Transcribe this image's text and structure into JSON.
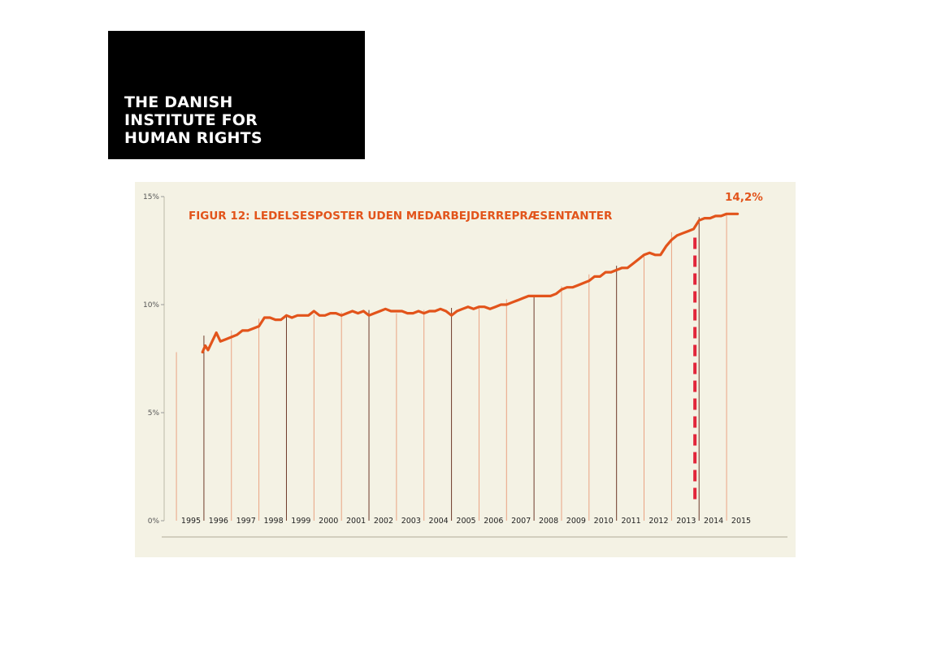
{
  "logo": {
    "lines": [
      "THE DANISH",
      "INSTITUTE FOR",
      "HUMAN RIGHTS"
    ]
  },
  "chart_data": {
    "type": "line",
    "title": "FIGUR 12: LEDELSESPOSTER UDEN MEDARBEJDERREPRÆSENTANTER",
    "xlabel": "",
    "ylabel": "",
    "y_ticks": [
      "0%",
      "5%",
      "10%",
      "15%"
    ],
    "ylim": [
      0,
      15
    ],
    "categories": [
      "1995",
      "1996",
      "1997",
      "1998",
      "1999",
      "2000",
      "2001",
      "2002",
      "2003",
      "2004",
      "2005",
      "2006",
      "2007",
      "2008",
      "2009",
      "2010",
      "2011",
      "2012",
      "2013",
      "2014",
      "2015"
    ],
    "series": [
      {
        "color": "#e2541b",
        "points": [
          [
            1994.95,
            7.8
          ],
          [
            1995.05,
            8.1
          ],
          [
            1995.15,
            7.9
          ],
          [
            1995.3,
            8.3
          ],
          [
            1995.45,
            8.7
          ],
          [
            1995.6,
            8.3
          ],
          [
            1995.8,
            8.4
          ],
          [
            1996.0,
            8.5
          ],
          [
            1996.2,
            8.6
          ],
          [
            1996.4,
            8.8
          ],
          [
            1996.6,
            8.8
          ],
          [
            1996.8,
            8.9
          ],
          [
            1997.0,
            9.0
          ],
          [
            1997.2,
            9.4
          ],
          [
            1997.4,
            9.4
          ],
          [
            1997.6,
            9.3
          ],
          [
            1997.8,
            9.3
          ],
          [
            1998.0,
            9.5
          ],
          [
            1998.2,
            9.4
          ],
          [
            1998.4,
            9.5
          ],
          [
            1998.6,
            9.5
          ],
          [
            1998.8,
            9.5
          ],
          [
            1999.0,
            9.7
          ],
          [
            1999.2,
            9.5
          ],
          [
            1999.4,
            9.5
          ],
          [
            1999.6,
            9.6
          ],
          [
            1999.8,
            9.6
          ],
          [
            2000.0,
            9.5
          ],
          [
            2000.2,
            9.6
          ],
          [
            2000.4,
            9.7
          ],
          [
            2000.6,
            9.6
          ],
          [
            2000.8,
            9.7
          ],
          [
            2001.0,
            9.5
          ],
          [
            2001.2,
            9.6
          ],
          [
            2001.4,
            9.7
          ],
          [
            2001.6,
            9.8
          ],
          [
            2001.8,
            9.7
          ],
          [
            2002.0,
            9.7
          ],
          [
            2002.2,
            9.7
          ],
          [
            2002.4,
            9.6
          ],
          [
            2002.6,
            9.6
          ],
          [
            2002.8,
            9.7
          ],
          [
            2003.0,
            9.6
          ],
          [
            2003.2,
            9.7
          ],
          [
            2003.4,
            9.7
          ],
          [
            2003.6,
            9.8
          ],
          [
            2003.8,
            9.7
          ],
          [
            2004.0,
            9.5
          ],
          [
            2004.2,
            9.7
          ],
          [
            2004.4,
            9.8
          ],
          [
            2004.6,
            9.9
          ],
          [
            2004.8,
            9.8
          ],
          [
            2005.0,
            9.9
          ],
          [
            2005.2,
            9.9
          ],
          [
            2005.4,
            9.8
          ],
          [
            2005.6,
            9.9
          ],
          [
            2005.8,
            10.0
          ],
          [
            2006.0,
            10.0
          ],
          [
            2006.2,
            10.1
          ],
          [
            2006.4,
            10.2
          ],
          [
            2006.6,
            10.3
          ],
          [
            2006.8,
            10.4
          ],
          [
            2007.0,
            10.4
          ],
          [
            2007.2,
            10.4
          ],
          [
            2007.4,
            10.4
          ],
          [
            2007.6,
            10.4
          ],
          [
            2007.8,
            10.5
          ],
          [
            2008.0,
            10.7
          ],
          [
            2008.2,
            10.8
          ],
          [
            2008.4,
            10.8
          ],
          [
            2008.6,
            10.9
          ],
          [
            2008.8,
            11.0
          ],
          [
            2009.0,
            11.1
          ],
          [
            2009.2,
            11.3
          ],
          [
            2009.4,
            11.3
          ],
          [
            2009.6,
            11.5
          ],
          [
            2009.8,
            11.5
          ],
          [
            2010.0,
            11.6
          ],
          [
            2010.2,
            11.7
          ],
          [
            2010.4,
            11.7
          ],
          [
            2010.6,
            11.9
          ],
          [
            2010.8,
            12.1
          ],
          [
            2011.0,
            12.3
          ],
          [
            2011.2,
            12.4
          ],
          [
            2011.4,
            12.3
          ],
          [
            2011.6,
            12.3
          ],
          [
            2011.8,
            12.7
          ],
          [
            2012.0,
            13.0
          ],
          [
            2012.2,
            13.2
          ],
          [
            2012.4,
            13.3
          ],
          [
            2012.6,
            13.4
          ],
          [
            2012.8,
            13.5
          ],
          [
            2013.0,
            13.9
          ],
          [
            2013.2,
            14.0
          ],
          [
            2013.4,
            14.0
          ],
          [
            2013.6,
            14.1
          ],
          [
            2013.8,
            14.1
          ],
          [
            2014.0,
            14.2
          ],
          [
            2014.2,
            14.2
          ],
          [
            2014.4,
            14.2
          ]
        ]
      }
    ],
    "end_label": "14,2%",
    "marker": {
      "x": 2012.85,
      "from": 0.8,
      "to": 13.1,
      "style": "dashed",
      "color": "#e2253a"
    },
    "grid": false,
    "legend": "none"
  }
}
